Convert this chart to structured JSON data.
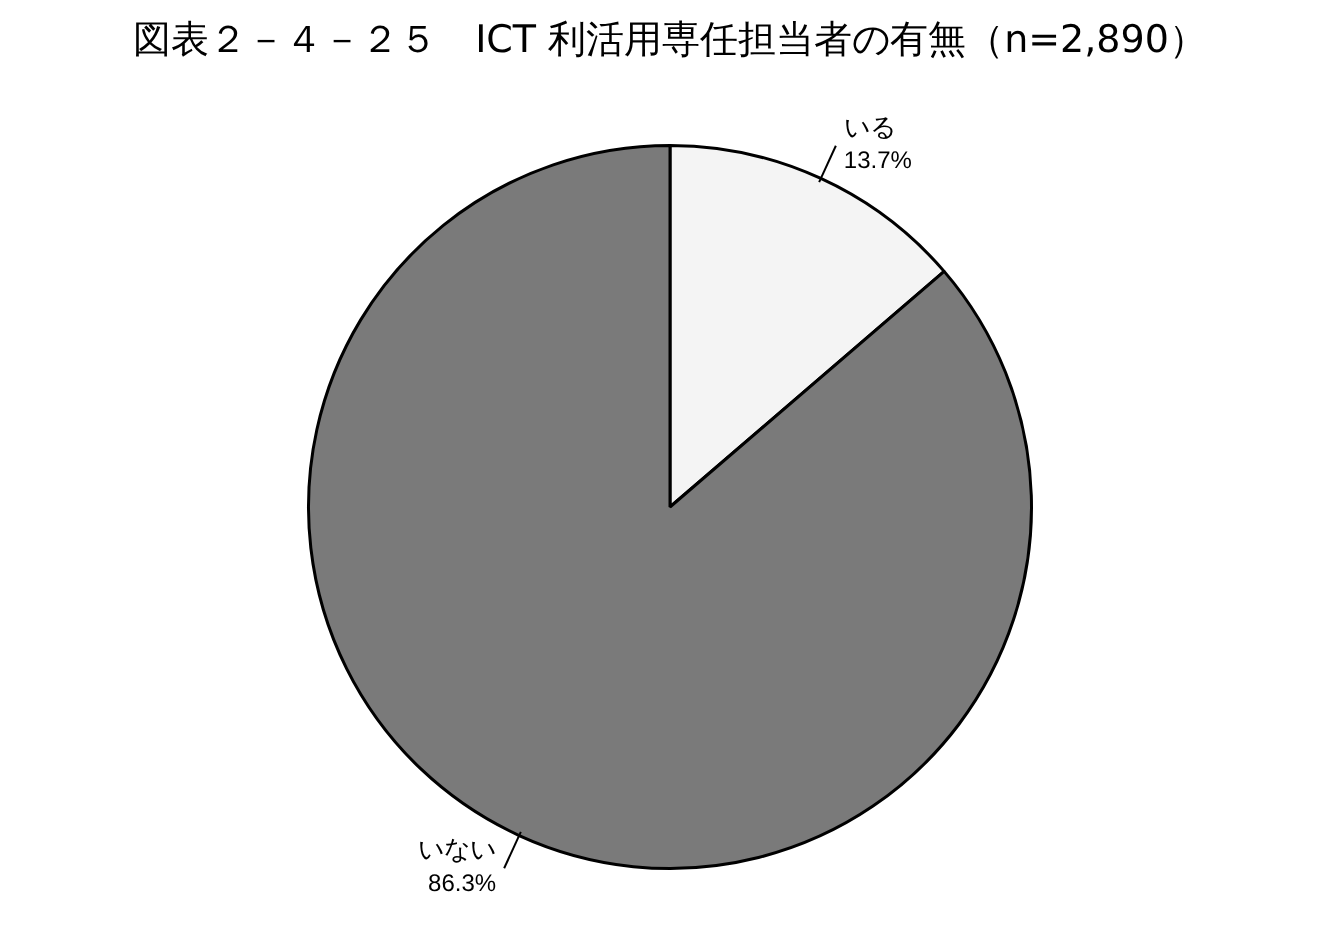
{
  "chart_data": {
    "type": "pie",
    "title": "図表２－４－２５　ICT 利活用専任担当者の有無（n=2,890）",
    "categories": [
      "いる",
      "いない"
    ],
    "values": [
      13.7,
      86.3
    ],
    "colors": [
      "#f4f4f4",
      "#7a7a7a"
    ],
    "value_labels": [
      "13.7%",
      "86.3%"
    ],
    "legend": false
  }
}
